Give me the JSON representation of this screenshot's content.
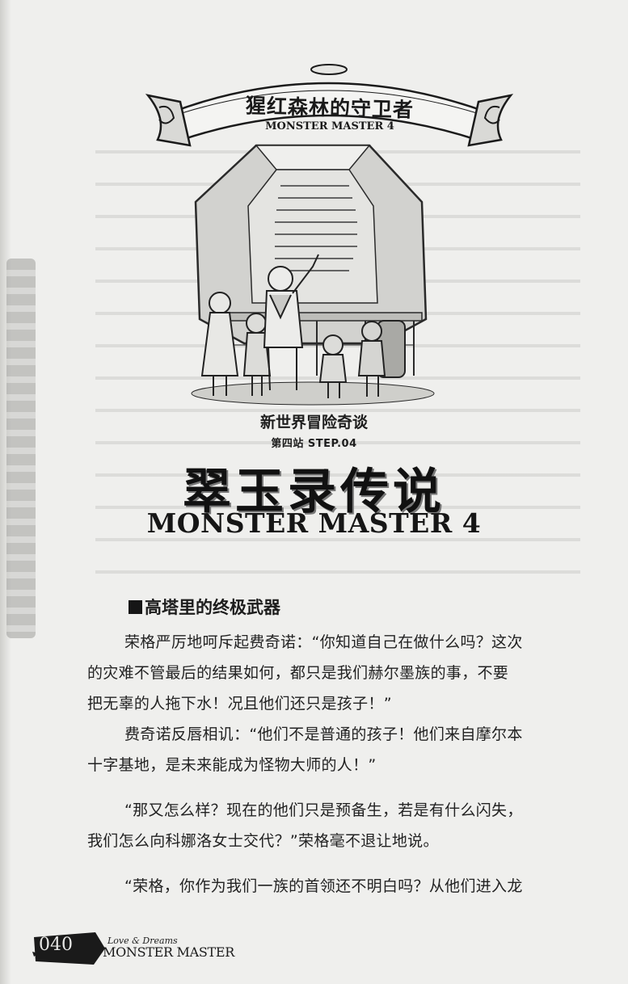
{
  "banner": {
    "title": "猩红森林的守卫者",
    "subtitle": "MONSTER MASTER 4"
  },
  "heading": {
    "series": "新世界冒险奇谈",
    "step": "第四站 STEP.04",
    "title": "翠玉录传说",
    "subtitle": "MONSTER MASTER 4"
  },
  "section": {
    "title": "高塔里的终极武器"
  },
  "paragraphs": [
    {
      "lines": [
        "荣格严厉地呵斥起费奇诺：“你知道自己在做什么吗？这次",
        "的灾难不管最后的结果如何，都只是我们赫尔墨族的事，不要",
        "把无辜的人拖下水！况且他们还只是孩子！”"
      ]
    },
    {
      "lines": [
        "费奇诺反唇相讥：“他们不是普通的孩子！他们来自摩尔本",
        "十字基地，是未来能成为怪物大师的人！”"
      ]
    },
    {
      "lines": [
        "“那又怎么样？现在的他们只是预备生，若是有什么闪失，",
        "我们怎么向科娜洛女士交代？”荣格毫不退让地说。"
      ]
    },
    {
      "lines": [
        "“荣格，你作为我们一族的首领还不明白吗？从他们进入龙"
      ]
    }
  ],
  "footer": {
    "page_number": "040",
    "tagline": "Love & Dreams",
    "brand": "MONSTER MASTER"
  }
}
